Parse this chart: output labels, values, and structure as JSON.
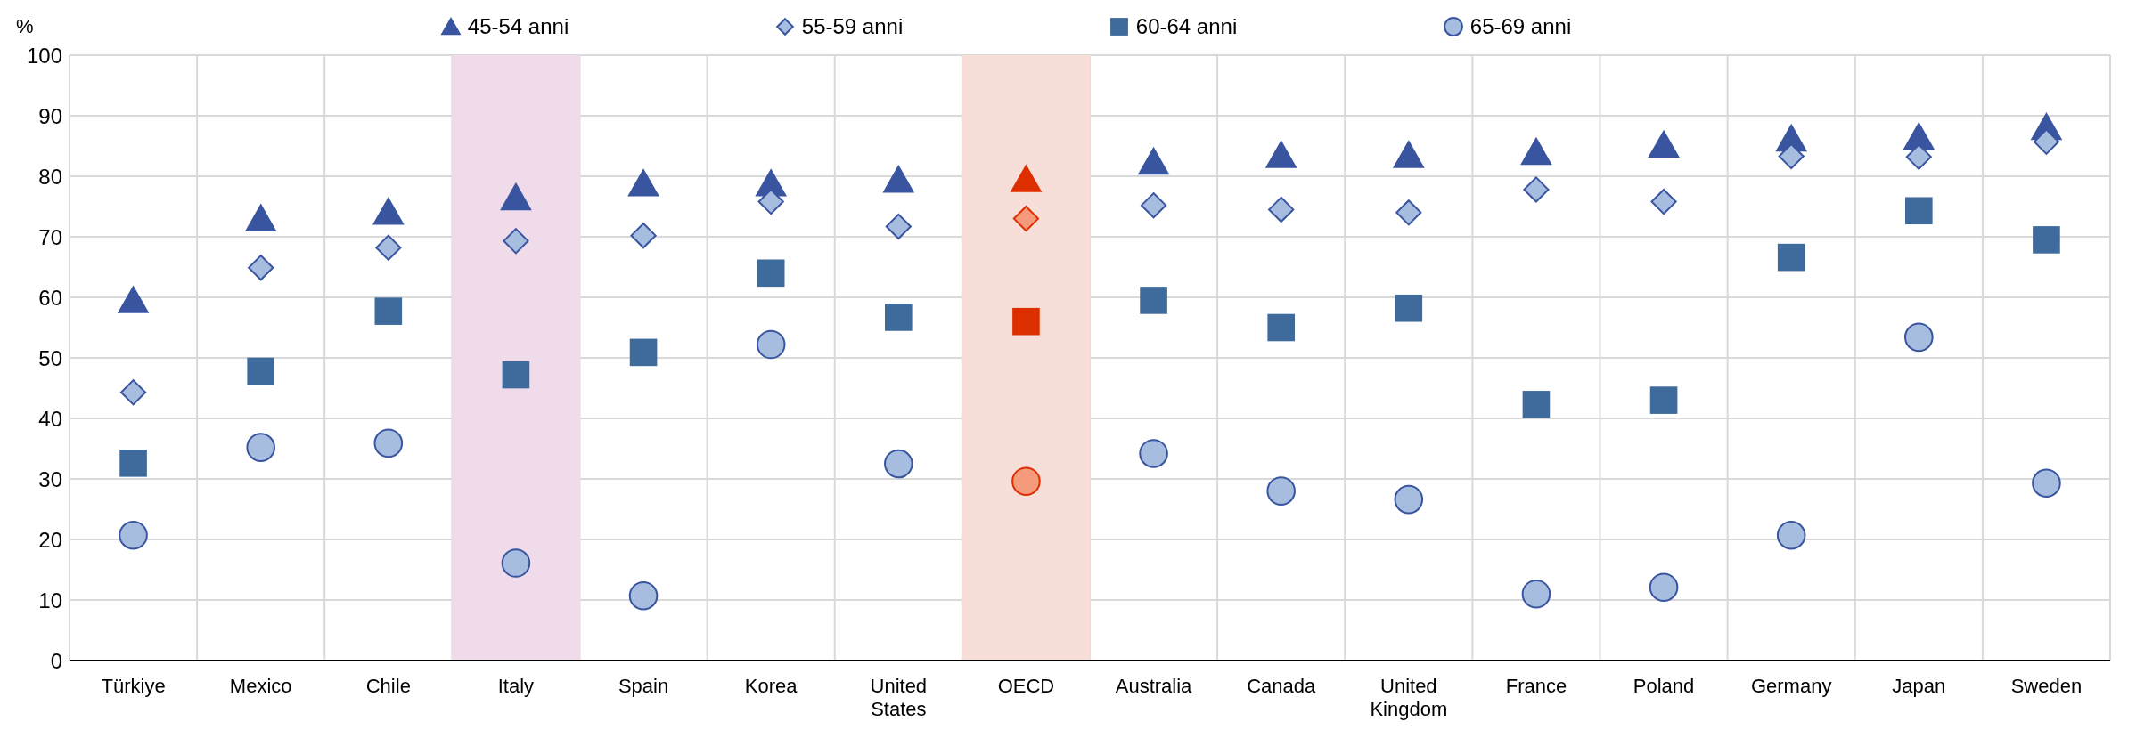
{
  "chart_data": {
    "type": "scatter",
    "ylabel": "%",
    "categories": [
      "Türkiye",
      "Mexico",
      "Chile",
      "Italy",
      "Spain",
      "Korea",
      "United States",
      "OECD",
      "Australia",
      "Canada",
      "United Kingdom",
      "France",
      "Poland",
      "Germany",
      "Japan",
      "Sweden"
    ],
    "series": [
      {
        "name": "45-54 anni",
        "marker": "triangle",
        "color": "#3a55a0",
        "colors": [
          "#3a55a0",
          "#3a55a0",
          "#3a55a0",
          "#3a55a0",
          "#3a55a0",
          "#3a55a0",
          "#3a55a0",
          "#dd2e00",
          "#3a55a0",
          "#3a55a0",
          "#3a55a0",
          "#3a55a0",
          "#3a55a0",
          "#3a55a0",
          "#3a55a0",
          "#3a55a0"
        ],
        "values": [
          59.5,
          73,
          74.1,
          76.5,
          78.8,
          78.8,
          79.4,
          79.5,
          82.4,
          83.5,
          83.5,
          84,
          85.2,
          86.2,
          86.5,
          88.1
        ]
      },
      {
        "name": "55-59 anni",
        "marker": "diamond",
        "color": "#a6bddf",
        "colors": [
          "#a6bddf",
          "#a6bddf",
          "#a6bddf",
          "#a6bddf",
          "#a6bddf",
          "#a6bddf",
          "#a6bddf",
          "#f59a7a",
          "#a6bddf",
          "#a6bddf",
          "#a6bddf",
          "#a6bddf",
          "#a6bddf",
          "#a6bddf",
          "#a6bddf",
          "#a6bddf"
        ],
        "values": [
          44.3,
          64.9,
          68.2,
          69.3,
          70.2,
          75.8,
          71.7,
          73,
          75.2,
          74.5,
          74,
          77.8,
          75.8,
          83.3,
          83.2,
          85.7
        ]
      },
      {
        "name": "60-64 anni",
        "marker": "square",
        "color": "#3e6a9c",
        "colors": [
          "#3e6a9c",
          "#3e6a9c",
          "#3e6a9c",
          "#3e6a9c",
          "#3e6a9c",
          "#3e6a9c",
          "#3e6a9c",
          "#dd2e00",
          "#3e6a9c",
          "#3e6a9c",
          "#3e6a9c",
          "#3e6a9c",
          "#3e6a9c",
          "#3e6a9c",
          "#3e6a9c",
          "#3e6a9c"
        ],
        "values": [
          32.6,
          47.8,
          57.7,
          47.2,
          50.9,
          64,
          56.7,
          56,
          59.5,
          55,
          58.2,
          42.3,
          43,
          66.6,
          74.3,
          69.5
        ]
      },
      {
        "name": "65-69 anni",
        "marker": "circle",
        "color": "#a6bddf",
        "colors": [
          "#a6bddf",
          "#a6bddf",
          "#a6bddf",
          "#a6bddf",
          "#a6bddf",
          "#a6bddf",
          "#a6bddf",
          "#f59a7a",
          "#a6bddf",
          "#a6bddf",
          "#a6bddf",
          "#a6bddf",
          "#a6bddf",
          "#a6bddf",
          "#a6bddf",
          "#a6bddf"
        ],
        "values": [
          20.7,
          35.2,
          35.9,
          16.1,
          10.7,
          52.2,
          32.5,
          29.6,
          34.2,
          28,
          26.6,
          11,
          12.1,
          20.7,
          53.4,
          29.3
        ]
      }
    ],
    "bands": [
      {
        "axis": "x",
        "from": "Italy",
        "to": "Italy",
        "color": "#f0dbeb"
      },
      {
        "axis": "x",
        "from": "OECD",
        "to": "OECD",
        "color": "#f8ded8"
      }
    ],
    "ylim": [
      0,
      100
    ],
    "yticks": [
      0,
      10,
      20,
      30,
      40,
      50,
      60,
      70,
      80,
      90,
      100
    ],
    "grid": true,
    "legend": "top"
  }
}
